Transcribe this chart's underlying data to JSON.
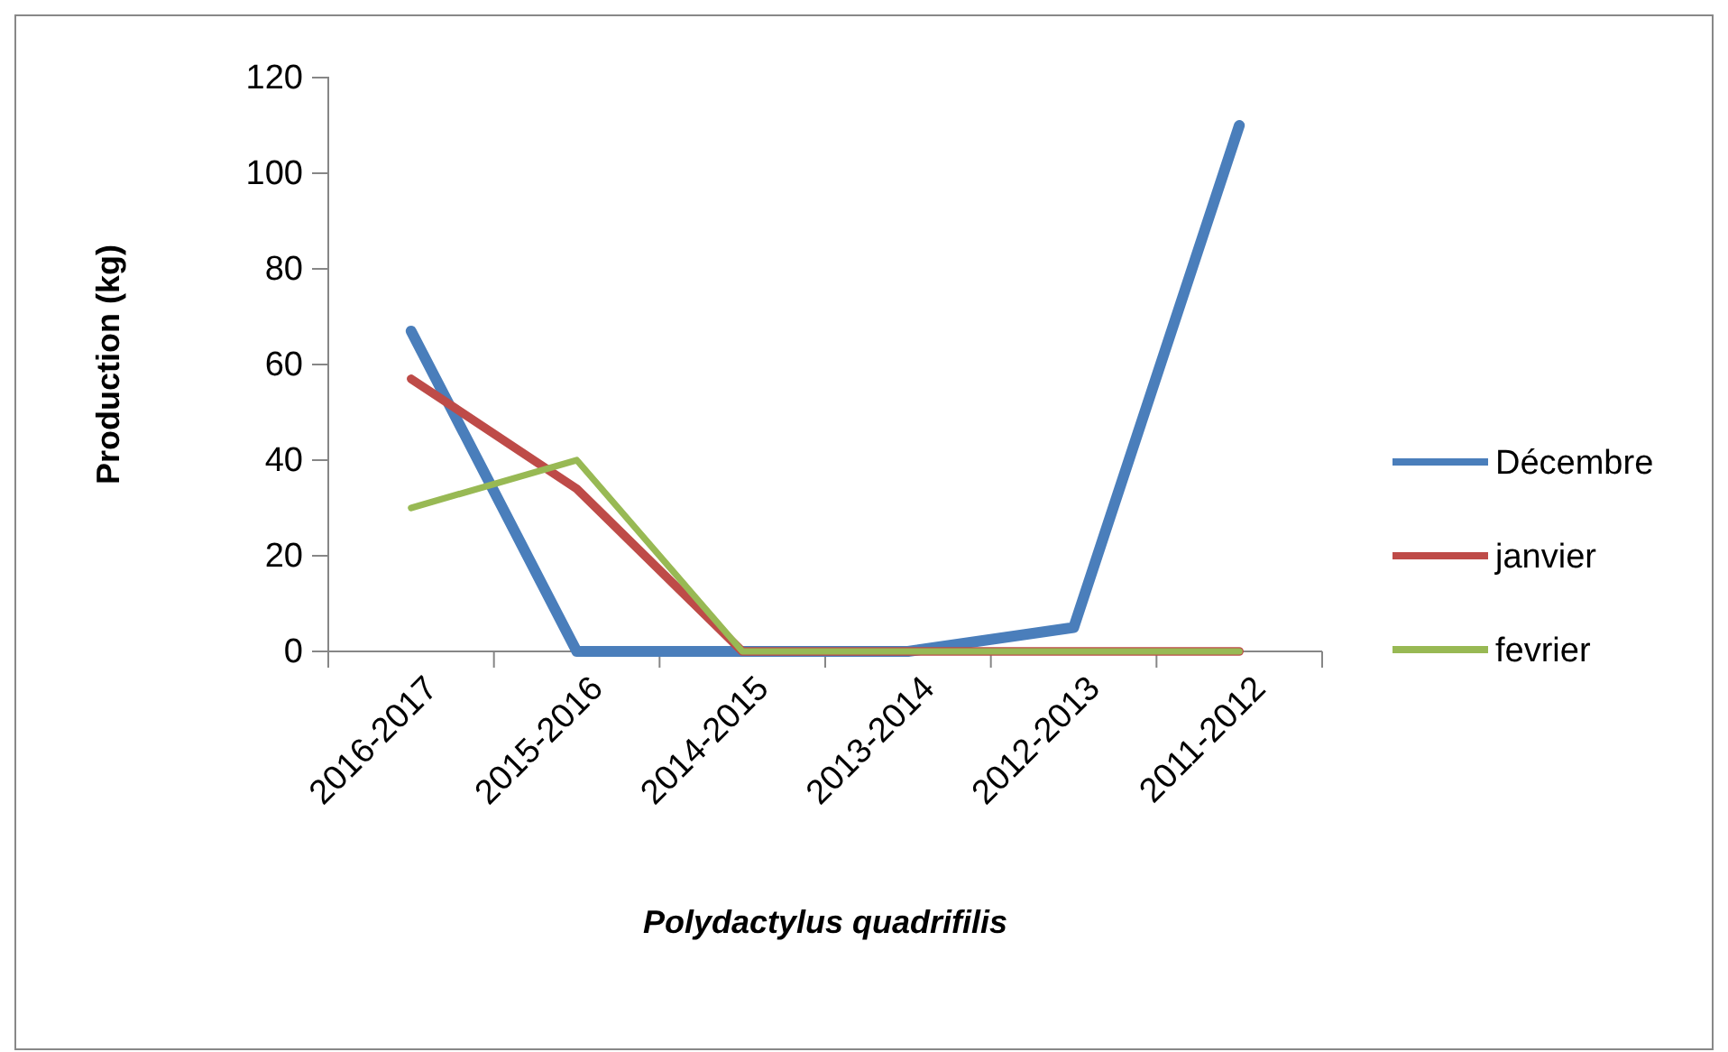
{
  "chart_data": {
    "type": "line",
    "xlabel": "Polydactylus quadrifilis",
    "ylabel": "Production (kg)",
    "categories": [
      "2016-2017",
      "2015-2016",
      "2014-2015",
      "2013-2014",
      "2012-2013",
      "2011-2012"
    ],
    "series": [
      {
        "name": "Décembre",
        "color": "#4a7ebb",
        "values": [
          67,
          0,
          0,
          0,
          5,
          110
        ]
      },
      {
        "name": "janvier",
        "color": "#be4b48",
        "values": [
          57,
          34,
          0,
          0,
          0,
          0
        ]
      },
      {
        "name": "fevrier",
        "color": "#98b954",
        "values": [
          30,
          40,
          0,
          0,
          0,
          0
        ]
      }
    ],
    "ylim": [
      0,
      120
    ],
    "yticks": [
      0,
      20,
      40,
      60,
      80,
      100,
      120
    ],
    "grid": false,
    "legend": "right",
    "marker": "none",
    "line_style": "solid"
  }
}
